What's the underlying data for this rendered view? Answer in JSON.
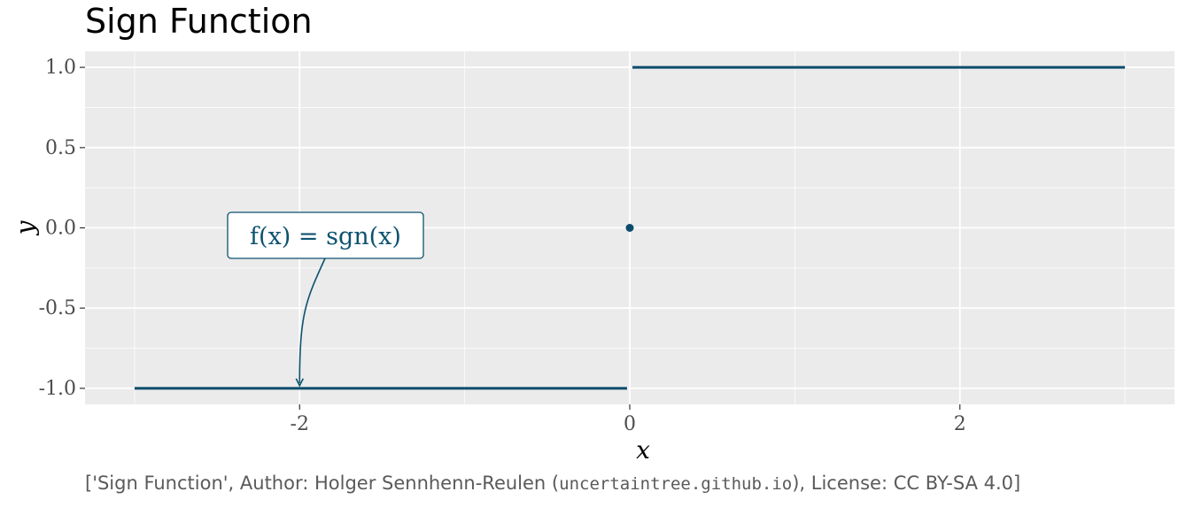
{
  "title": "Sign Function",
  "caption": {
    "prefix": "['Sign Function', Author: Holger Sennhenn-Reulen (",
    "url": "uncertaintree.github.io",
    "suffix": "), License: CC BY-SA 4.0]"
  },
  "chart_data": {
    "type": "line",
    "title": "Sign Function",
    "xlabel": "x",
    "ylabel": "y",
    "xlim": [
      -3.3,
      3.3
    ],
    "ylim": [
      -1.1,
      1.1
    ],
    "x_ticks": [
      -2,
      0,
      2
    ],
    "x_tick_labels": [
      "-2",
      "0",
      "2"
    ],
    "y_ticks": [
      -1.0,
      -0.5,
      0.0,
      0.5,
      1.0
    ],
    "y_tick_labels": [
      "-1.0",
      "-0.5",
      "0.0",
      "0.5",
      "1.0"
    ],
    "grid": true,
    "series": [
      {
        "segment": "negative",
        "x": [
          -3,
          0
        ],
        "y": [
          -1,
          -1
        ]
      },
      {
        "segment": "positive",
        "x": [
          0,
          3
        ],
        "y": [
          1,
          1
        ]
      }
    ],
    "points": [
      {
        "x": 0,
        "y": 0
      }
    ],
    "annotation": {
      "text": "f(x) = sgn(x)",
      "target": {
        "x": -2,
        "y": -1
      }
    },
    "colors": {
      "line": "#0d4c6c",
      "panel": "#ebebeb",
      "grid": "#ffffff",
      "annotation": "#0d5270"
    }
  }
}
